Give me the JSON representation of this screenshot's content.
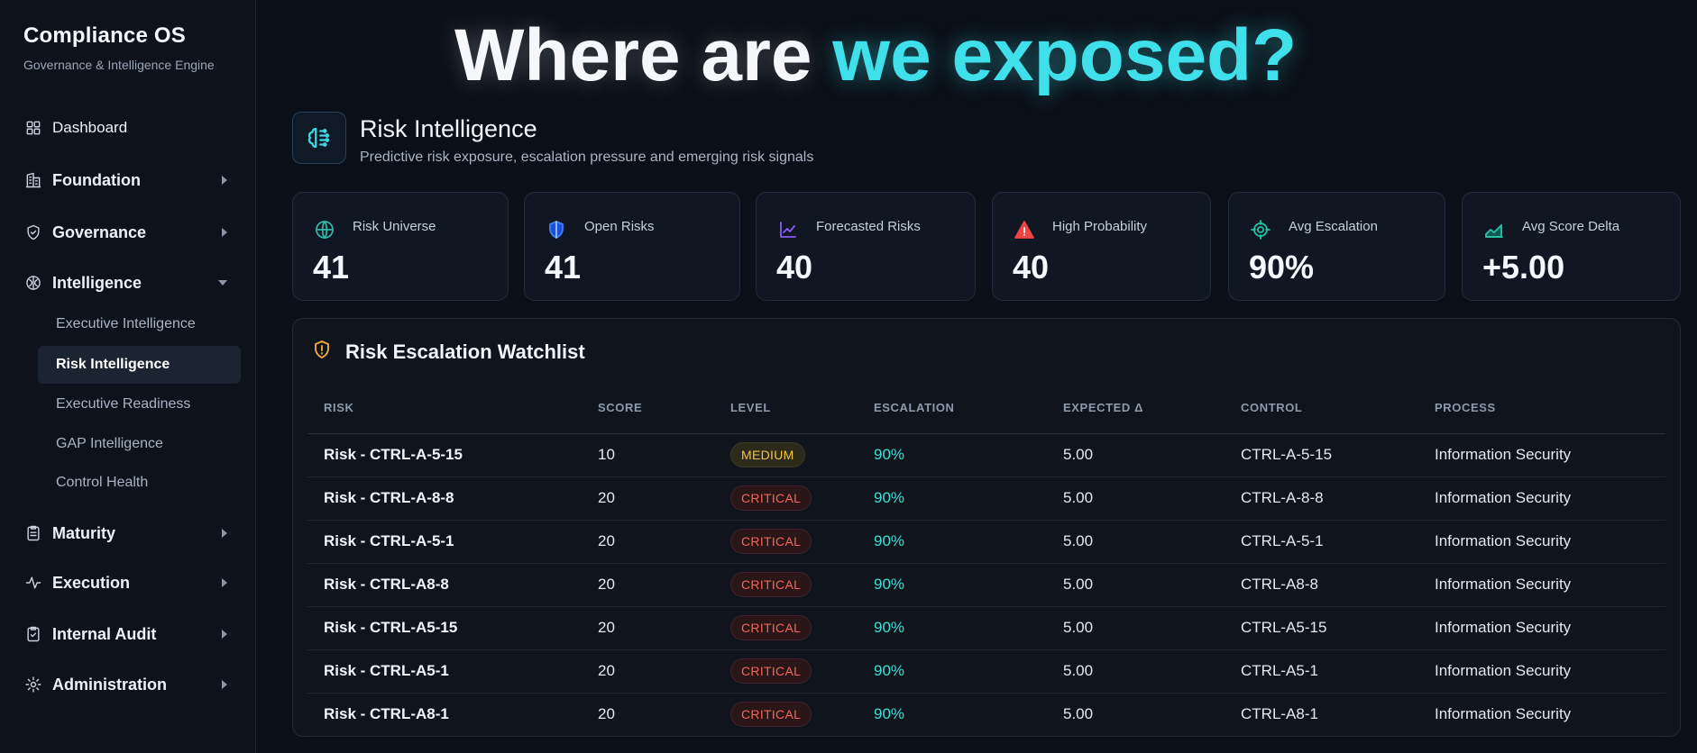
{
  "app": {
    "title": "Compliance OS",
    "subtitle": "Governance & Intelligence Engine"
  },
  "sidebar": {
    "items": [
      {
        "label": "Dashboard",
        "icon": "grid-icon"
      },
      {
        "label": "Foundation",
        "icon": "building-icon"
      },
      {
        "label": "Governance",
        "icon": "shield-check-icon"
      },
      {
        "label": "Intelligence",
        "icon": "brain-icon"
      },
      {
        "label": "Maturity",
        "icon": "clipboard-list-icon"
      },
      {
        "label": "Execution",
        "icon": "activity-icon"
      },
      {
        "label": "Internal Audit",
        "icon": "clipboard-check-icon"
      },
      {
        "label": "Administration",
        "icon": "gear-icon"
      }
    ],
    "intelligence_sub": [
      {
        "label": "Executive Intelligence"
      },
      {
        "label": "Risk Intelligence"
      },
      {
        "label": "Executive Readiness"
      },
      {
        "label": "GAP Intelligence"
      },
      {
        "label": "Control Health"
      }
    ]
  },
  "hero": {
    "part1": "Where are ",
    "part2": "we exposed?"
  },
  "section": {
    "title": "Risk Intelligence",
    "subtitle": "Predictive risk exposure, escalation pressure and emerging risk signals"
  },
  "kpis": [
    {
      "label": "Risk Universe",
      "value": "41",
      "icon": "globe-icon",
      "color": "#2fb7a8"
    },
    {
      "label": "Open Risks",
      "value": "41",
      "icon": "shield-icon",
      "color": "#3b82f6"
    },
    {
      "label": "Forecasted Risks",
      "value": "40",
      "icon": "trend-chart-icon",
      "color": "#8b5cf6"
    },
    {
      "label": "High Probability",
      "value": "40",
      "icon": "warning-triangle-icon",
      "color": "#ef4444"
    },
    {
      "label": "Avg Escalation",
      "value": "90%",
      "icon": "target-icon",
      "color": "#22c5a8"
    },
    {
      "label": "Avg Score Delta",
      "value": "+5.00",
      "icon": "area-chart-icon",
      "color": "#22c5a8"
    }
  ],
  "watchlist": {
    "title": "Risk Escalation Watchlist",
    "columns": [
      "RISK",
      "SCORE",
      "LEVEL",
      "ESCALATION",
      "EXPECTED Δ",
      "CONTROL",
      "PROCESS"
    ],
    "rows": [
      {
        "risk": "Risk - CTRL-A-5-15",
        "score": "10",
        "level": "MEDIUM",
        "escalation": "90%",
        "expected": "5.00",
        "control": "CTRL-A-5-15",
        "process": "Information Security"
      },
      {
        "risk": "Risk - CTRL-A-8-8",
        "score": "20",
        "level": "CRITICAL",
        "escalation": "90%",
        "expected": "5.00",
        "control": "CTRL-A-8-8",
        "process": "Information Security"
      },
      {
        "risk": "Risk - CTRL-A-5-1",
        "score": "20",
        "level": "CRITICAL",
        "escalation": "90%",
        "expected": "5.00",
        "control": "CTRL-A-5-1",
        "process": "Information Security"
      },
      {
        "risk": "Risk - CTRL-A8-8",
        "score": "20",
        "level": "CRITICAL",
        "escalation": "90%",
        "expected": "5.00",
        "control": "CTRL-A8-8",
        "process": "Information Security"
      },
      {
        "risk": "Risk - CTRL-A5-15",
        "score": "20",
        "level": "CRITICAL",
        "escalation": "90%",
        "expected": "5.00",
        "control": "CTRL-A5-15",
        "process": "Information Security"
      },
      {
        "risk": "Risk - CTRL-A5-1",
        "score": "20",
        "level": "CRITICAL",
        "escalation": "90%",
        "expected": "5.00",
        "control": "CTRL-A5-1",
        "process": "Information Security"
      },
      {
        "risk": "Risk - CTRL-A8-1",
        "score": "20",
        "level": "CRITICAL",
        "escalation": "90%",
        "expected": "5.00",
        "control": "CTRL-A8-1",
        "process": "Information Security"
      }
    ]
  }
}
